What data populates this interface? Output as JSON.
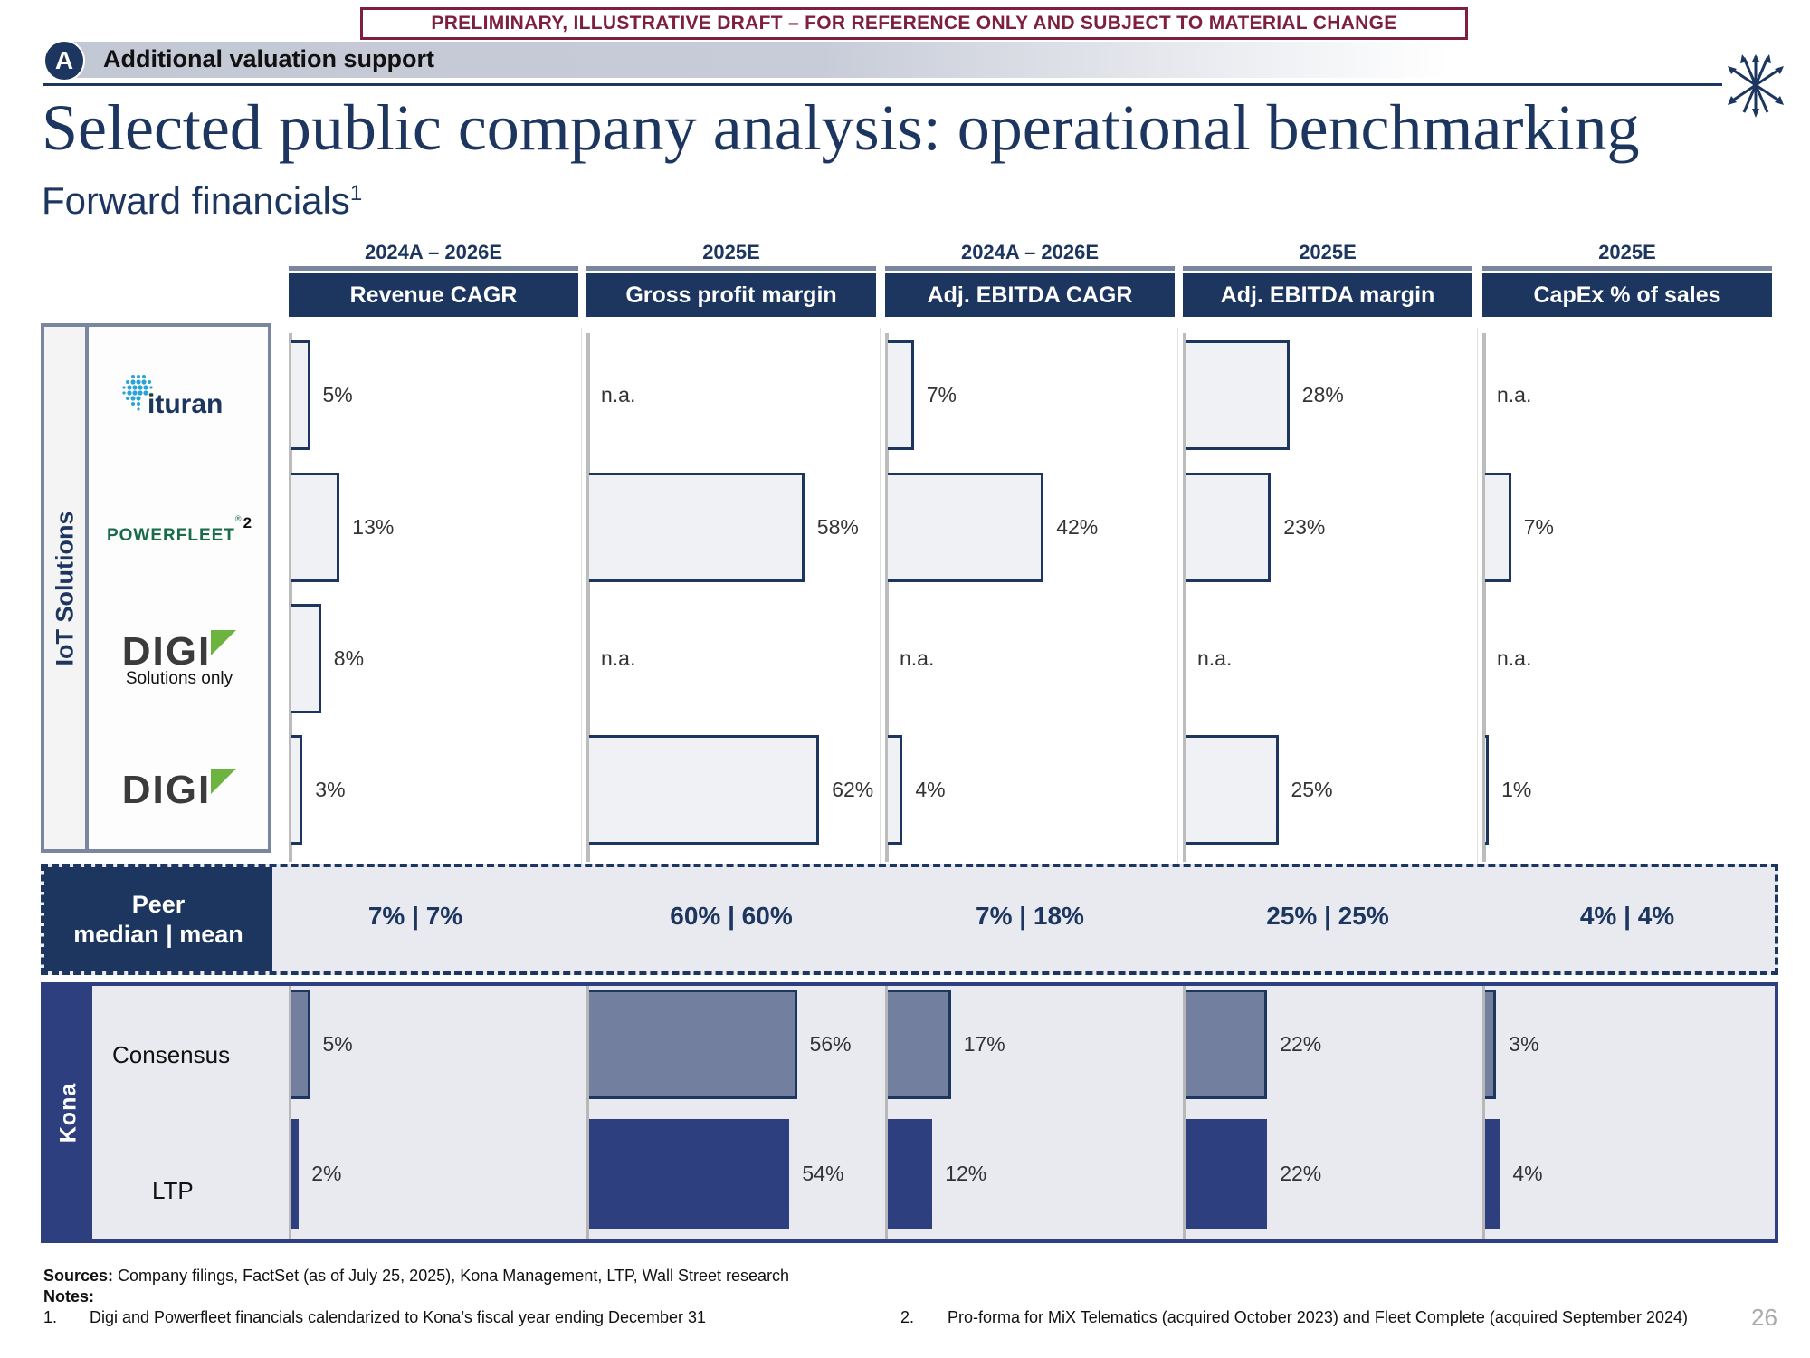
{
  "banner": "PRELIMINARY, ILLUSTRATIVE DRAFT – FOR REFERENCE ONLY AND SUBJECT TO MATERIAL CHANGE",
  "section": {
    "badge": "A",
    "title": "Additional valuation support"
  },
  "title": "Selected public company analysis: operational benchmarking",
  "subtitle": "Forward financials",
  "subtitle_footnote": "1",
  "logo_icon": "arrows-sheaf-icon",
  "colors": {
    "navy": "#1c3660",
    "peer_bar": "#f0f1f5",
    "consensus_bar": "#737f9e",
    "ltp_bar": "#2e3f80",
    "banner": "#7d1f3d"
  },
  "chart_data": {
    "type": "bar",
    "orientation": "horizontal",
    "title": "Forward financials",
    "metrics": [
      {
        "period": "2024A – 2026E",
        "label": "Revenue CAGR"
      },
      {
        "period": "2025E",
        "label": "Gross profit margin"
      },
      {
        "period": "2024A – 2026E",
        "label": "Adj. EBITDA CAGR"
      },
      {
        "period": "2025E",
        "label": "Adj. EBITDA margin"
      },
      {
        "period": "2025E",
        "label": "CapEx % of sales"
      }
    ],
    "group_label": "IoT Solutions",
    "peers": [
      {
        "name": "ituran",
        "note": "",
        "footnote": "",
        "values": [
          5,
          null,
          7,
          28,
          null
        ]
      },
      {
        "name": "POWERFLEET",
        "note": "",
        "footnote": "2",
        "values": [
          13,
          58,
          42,
          23,
          7
        ]
      },
      {
        "name": "DIGI",
        "note": "Solutions only",
        "footnote": "",
        "values": [
          8,
          null,
          null,
          null,
          null
        ]
      },
      {
        "name": "DIGI",
        "note": "",
        "footnote": "",
        "values": [
          3,
          62,
          4,
          25,
          1
        ]
      }
    ],
    "na_label": "n.a.",
    "peer_stats_label": [
      "Peer",
      "median | mean"
    ],
    "peer_stats": [
      "7% | 7%",
      "60% | 60%",
      "7% | 18%",
      "25% | 25%",
      "4% | 4%"
    ],
    "kona_label": "Kona",
    "kona": [
      {
        "name": "Consensus",
        "values": [
          5,
          56,
          17,
          22,
          3
        ]
      },
      {
        "name": "LTP",
        "values": [
          2,
          54,
          12,
          22,
          4
        ]
      }
    ],
    "unit": "%",
    "xlim": [
      0,
      75
    ]
  },
  "footer": {
    "sources_label": "Sources:",
    "sources": "Company filings, FactSet (as of July 25, 2025), Kona Management, LTP, Wall Street research",
    "notes_label": "Notes:",
    "notes": [
      {
        "num": "1.",
        "text": "Digi and Powerfleet financials calendarized to Kona’s fiscal year ending December 31"
      },
      {
        "num": "2.",
        "text": "Pro-forma for MiX Telematics (acquired October 2023) and Fleet Complete (acquired September 2024)"
      }
    ]
  },
  "page_number": "26"
}
